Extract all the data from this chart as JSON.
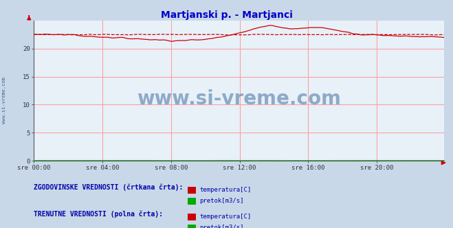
{
  "title": "Martjanski p. - Martjanci",
  "title_color": "#0000cc",
  "bg_color": "#c8d8e8",
  "plot_bg_color": "#e8f0f8",
  "grid_color": "#ff9999",
  "watermark_text": "www.si-vreme.com",
  "watermark_color": "#336699",
  "left_label": "www.si-vreme.com",
  "ylim": [
    0,
    25
  ],
  "n_points": 288,
  "xtick_labels": [
    "sre 00:00",
    "sre 04:00",
    "sre 08:00",
    "sre 12:00",
    "sre 16:00",
    "sre 20:00"
  ],
  "xtick_positions": [
    0,
    48,
    96,
    144,
    192,
    240
  ],
  "temp_color": "#cc0000",
  "pretok_color": "#00aa00",
  "legend_text_color": "#0000aa",
  "legend_header1": "ZGODOVINSKE VREDNOSTI (črtkana črta):",
  "legend_header2": "TRENUTNE VREDNOSTI (polna črta):",
  "legend_label_temp": "temperatura[C]",
  "legend_label_pretok": "pretok[m3/s]"
}
